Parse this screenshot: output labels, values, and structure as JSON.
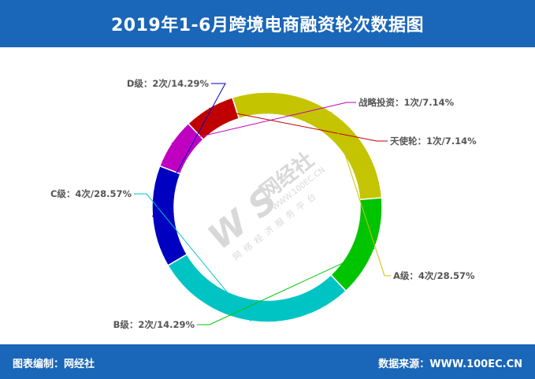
{
  "header": {
    "title": "2019年1-6月跨境电商融资轮次数据图"
  },
  "footer": {
    "left_label": "图表编制：",
    "left_value": "网经社",
    "right_label": "数据来源：",
    "right_value": "WWW.100EC.CN"
  },
  "watermark": {
    "logo": "W S",
    "brand": "网经社",
    "url": "WWW.100EC.CN",
    "slogan": "网络经济服务平台"
  },
  "chart_data": {
    "type": "pie",
    "variant": "donut",
    "title": "2019年1-6月跨境电商融资轮次数据图",
    "unit": "次",
    "slices": [
      {
        "name": "战略投资",
        "value": 1,
        "percent": "7.14%",
        "color": "#c000c0",
        "label": "战略投资：1次/7.14%"
      },
      {
        "name": "天使轮",
        "value": 1,
        "percent": "7.14%",
        "color": "#c00000",
        "label": "天使轮：1次/7.14%"
      },
      {
        "name": "A级",
        "value": 4,
        "percent": "28.57%",
        "color": "#c4c400",
        "label": "A级：4次/28.57%"
      },
      {
        "name": "B级",
        "value": 2,
        "percent": "14.29%",
        "color": "#00c400",
        "label": "B级：2次/14.29%"
      },
      {
        "name": "C级",
        "value": 4,
        "percent": "28.57%",
        "color": "#00c4c4",
        "label": "C级：4次/28.57%"
      },
      {
        "name": "D级",
        "value": 2,
        "percent": "14.29%",
        "color": "#0000c0",
        "label": "D级：2次/14.29%"
      }
    ]
  }
}
